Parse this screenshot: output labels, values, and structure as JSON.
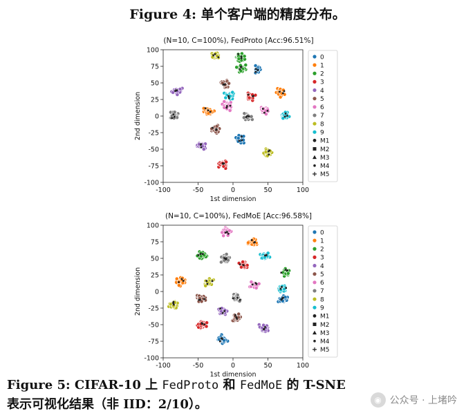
{
  "heading": {
    "label": "Figure 4:",
    "text": "单个客户端的精度分布。"
  },
  "chart_data": [
    {
      "type": "scatter",
      "title": "(N=10, C=100%), FedProto [Acc:96.51%]",
      "xlabel": "1st dimension",
      "ylabel": "2nd dimension",
      "xlim": [
        -100,
        100
      ],
      "ylim": [
        -100,
        100
      ],
      "xticks": [
        -100,
        -50,
        0,
        50,
        100
      ],
      "yticks": [
        100,
        75,
        50,
        25,
        0,
        -25,
        -50,
        -75,
        -100
      ],
      "legend_position": "right",
      "legend": [
        "0",
        "1",
        "2",
        "3",
        "4",
        "5",
        "6",
        "7",
        "8",
        "9",
        "M1",
        "M2",
        "M3",
        "M4",
        "M5"
      ],
      "clusters": [
        {
          "class": "0",
          "centers": [
            [
              35,
              70
            ],
            [
              10,
              -35
            ]
          ]
        },
        {
          "class": "1",
          "centers": [
            [
              -35,
              8
            ],
            [
              68,
              35
            ]
          ]
        },
        {
          "class": "2",
          "centers": [
            [
              10,
              90
            ],
            [
              12,
              72
            ]
          ]
        },
        {
          "class": "3",
          "centers": [
            [
              -15,
              -72
            ],
            [
              25,
              30
            ]
          ]
        },
        {
          "class": "4",
          "centers": [
            [
              -80,
              38
            ],
            [
              -45,
              -45
            ]
          ]
        },
        {
          "class": "5",
          "centers": [
            [
              -25,
              -20
            ],
            [
              -10,
              48
            ]
          ]
        },
        {
          "class": "6",
          "centers": [
            [
              -8,
              15
            ],
            [
              45,
              8
            ]
          ]
        },
        {
          "class": "7",
          "centers": [
            [
              -85,
              0
            ],
            [
              20,
              -2
            ]
          ]
        },
        {
          "class": "8",
          "centers": [
            [
              -25,
              92
            ],
            [
              50,
              -55
            ]
          ]
        },
        {
          "class": "9",
          "centers": [
            [
              75,
              0
            ],
            [
              -5,
              30
            ]
          ]
        }
      ]
    },
    {
      "type": "scatter",
      "title": "(N=10, C=100%), FedMoE [Acc:96.58%]",
      "xlabel": "1st dimension",
      "ylabel": "2nd dimension",
      "xlim": [
        -100,
        100
      ],
      "ylim": [
        -100,
        100
      ],
      "xticks": [
        -100,
        -50,
        0,
        50,
        100
      ],
      "yticks": [
        100,
        75,
        50,
        25,
        0,
        -25,
        -50,
        -75,
        -100
      ],
      "legend_position": "right",
      "legend": [
        "0",
        "1",
        "2",
        "3",
        "4",
        "5",
        "6",
        "7",
        "8",
        "9",
        "M1",
        "M2",
        "M3",
        "M4",
        "M5"
      ],
      "clusters": [
        {
          "class": "0",
          "centers": [
            [
              72,
              -12
            ],
            [
              -15,
              -72
            ]
          ]
        },
        {
          "class": "1",
          "centers": [
            [
              -75,
              15
            ],
            [
              28,
              75
            ]
          ]
        },
        {
          "class": "2",
          "centers": [
            [
              -45,
              55
            ],
            [
              75,
              30
            ]
          ]
        },
        {
          "class": "3",
          "centers": [
            [
              15,
              40
            ],
            [
              -45,
              -50
            ]
          ]
        },
        {
          "class": "4",
          "centers": [
            [
              -15,
              -30
            ],
            [
              45,
              -55
            ]
          ]
        },
        {
          "class": "5",
          "centers": [
            [
              5,
              -40
            ],
            [
              -45,
              -10
            ]
          ]
        },
        {
          "class": "6",
          "centers": [
            [
              30,
              10
            ],
            [
              -10,
              90
            ]
          ]
        },
        {
          "class": "7",
          "centers": [
            [
              -10,
              50
            ],
            [
              5,
              -10
            ]
          ]
        },
        {
          "class": "8",
          "centers": [
            [
              -85,
              -20
            ],
            [
              -35,
              15
            ]
          ]
        },
        {
          "class": "9",
          "centers": [
            [
              45,
              55
            ],
            [
              70,
              5
            ]
          ]
        }
      ]
    }
  ],
  "colors": [
    "#1f77b4",
    "#ff7f0e",
    "#2ca02c",
    "#d62728",
    "#9467bd",
    "#8c564b",
    "#e377c2",
    "#7f7f7f",
    "#bcbd22",
    "#17becf"
  ],
  "caption": {
    "part1": "Figure 5: CIFAR-10 上 ",
    "fedproto": "FedProto",
    "part2": " 和 ",
    "fedmoe": "FedMoE",
    "part3": " 的 T-SNE 表示可视化结果（非 IID：2/10）。"
  },
  "watermark": {
    "icon": "wechat-icon",
    "text": "公众号 · 上堵吟"
  }
}
